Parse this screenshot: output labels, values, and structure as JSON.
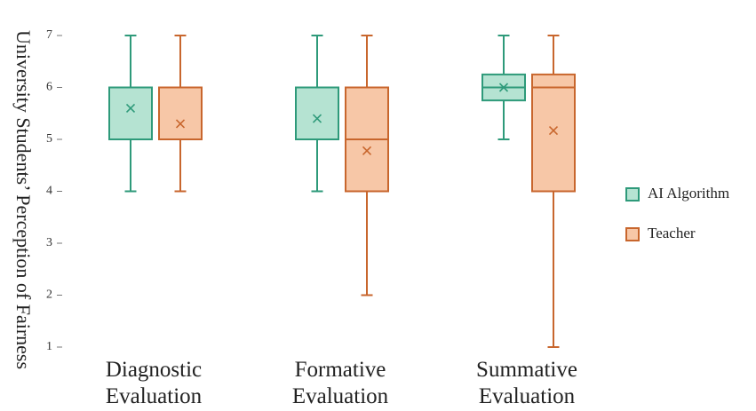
{
  "chart_data": {
    "type": "box",
    "ylabel": "University Students’ Perception of Fairness",
    "xlabel": "",
    "ylim": [
      1,
      7
    ],
    "yticks": [
      "1",
      "2",
      "3",
      "4",
      "5",
      "6",
      "7"
    ],
    "categories": [
      [
        "Diagnostic",
        "Evaluation"
      ],
      [
        "Formative",
        "Evaluation"
      ],
      [
        "Summative",
        "Evaluation"
      ]
    ],
    "legend_position": "right",
    "series": [
      {
        "name": "AI Algorithm",
        "stroke": "#2e9a7a",
        "fill": "#b5e3d2",
        "boxes": [
          {
            "min": 4,
            "q1": 5,
            "median": 5,
            "q3": 6,
            "max": 7,
            "mean": 5.6
          },
          {
            "min": 4,
            "q1": 5,
            "median": 5,
            "q3": 6,
            "max": 7,
            "mean": 5.4
          },
          {
            "min": 5,
            "q1": 5.75,
            "median": 6,
            "q3": 6.25,
            "max": 7,
            "mean": 6.0
          }
        ]
      },
      {
        "name": "Teacher",
        "stroke": "#c8662d",
        "fill": "#f7c7a7",
        "boxes": [
          {
            "min": 4,
            "q1": 5,
            "median": 5,
            "q3": 6,
            "max": 7,
            "mean": 5.3
          },
          {
            "min": 2,
            "q1": 4,
            "median": 5,
            "q3": 6,
            "max": 7,
            "mean": 4.78
          },
          {
            "min": 1,
            "q1": 4,
            "median": 6,
            "q3": 6.25,
            "max": 7,
            "mean": 5.17
          }
        ]
      }
    ]
  }
}
